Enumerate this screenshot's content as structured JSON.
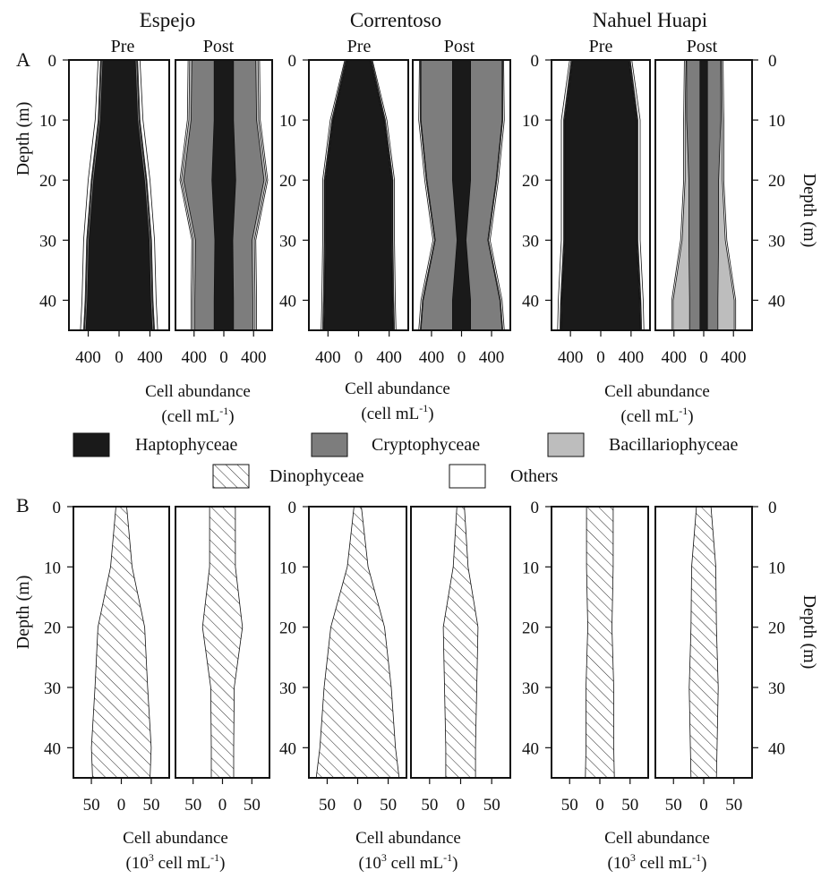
{
  "figure": {
    "lake_titles": [
      "Espejo",
      "Correntoso",
      "Nahuel Huapi"
    ],
    "period_labels": [
      "Pre",
      "Post"
    ],
    "depth_label": "Depth (m)",
    "depth_ticks": [
      "0",
      "10",
      "20",
      "30",
      "40"
    ],
    "panel_a_label": "A",
    "panel_b_label": "B",
    "axis_a_line1": "Cell abundance",
    "axis_a_line2_main": "(cell mL",
    "axis_a_line2_sup": "-1",
    "axis_a_line2_end": ")",
    "axis_b_line1": "Cell abundance",
    "axis_b_line2_pre": "(10",
    "axis_b_line2_sup1": "3",
    "axis_b_line2_main": " cell mL",
    "axis_b_line2_sup2": "-1",
    "axis_b_line2_end": ")",
    "x_ticks_a": [
      "400",
      "0",
      "400"
    ],
    "x_ticks_b": [
      "50",
      "0",
      "50"
    ]
  },
  "legend": {
    "items": [
      {
        "label": "Haptophyceae",
        "color": "#1a1a1a",
        "pattern": "solid"
      },
      {
        "label": "Cryptophyceae",
        "color": "#7d7d7d",
        "pattern": "solid"
      },
      {
        "label": "Bacillariophyceae",
        "color": "#bdbdbd",
        "pattern": "solid"
      },
      {
        "label": "Dinophyceae",
        "color": "#ffffff",
        "pattern": "hatch"
      },
      {
        "label": "Others",
        "color": "#ffffff",
        "pattern": "solid"
      }
    ]
  },
  "chart_data": {
    "type": "area",
    "subtype": "kite-diagram",
    "depths_m": [
      0,
      10,
      20,
      30,
      40,
      45
    ],
    "depth_range": [
      0,
      45
    ],
    "panel_a": {
      "unit": "cell mL-1",
      "x_range": [
        -650,
        650
      ],
      "series_order": [
        "Haptophyceae",
        "Cryptophyceae",
        "Bacillariophyceae",
        "Others"
      ],
      "lakes": [
        {
          "lake": "Espejo",
          "pre": {
            "Haptophyceae": [
              210,
              240,
              330,
              390,
              410,
              430
            ],
            "Cryptophyceae": [
              20,
              20,
              20,
              20,
              20,
              20
            ],
            "Bacillariophyceae": [
              10,
              10,
              10,
              10,
              10,
              10
            ],
            "Others": [
              30,
              40,
              40,
              40,
              40,
              40
            ]
          },
          "post": {
            "Haptophyceae": [
              130,
              130,
              160,
              120,
              130,
              130
            ],
            "Cryptophyceae": [
              300,
              310,
              380,
              260,
              260,
              260
            ],
            "Bacillariophyceae": [
              30,
              30,
              30,
              30,
              30,
              30
            ],
            "Others": [
              20,
              20,
              20,
              20,
              20,
              20
            ]
          }
        },
        {
          "lake": "Correntoso",
          "pre": {
            "Haptophyceae": [
              150,
              330,
              430,
              430,
              440,
              450
            ],
            "Cryptophyceae": [
              10,
              10,
              10,
              10,
              10,
              10
            ],
            "Bacillariophyceae": [
              10,
              10,
              10,
              10,
              10,
              10
            ],
            "Others": [
              10,
              20,
              20,
              20,
              20,
              20
            ]
          },
          "post": {
            "Haptophyceae": [
              120,
              120,
              120,
              60,
              120,
              120
            ],
            "Cryptophyceae": [
              420,
              420,
              340,
              290,
              390,
              420
            ],
            "Bacillariophyceae": [
              10,
              10,
              10,
              10,
              10,
              10
            ],
            "Others": [
              10,
              20,
              20,
              20,
              20,
              20
            ]
          }
        },
        {
          "lake": "Nahuel Huapi",
          "pre": {
            "Haptophyceae": [
              370,
              470,
              470,
              470,
              510,
              520
            ],
            "Cryptophyceae": [
              10,
              10,
              10,
              10,
              10,
              10
            ],
            "Bacillariophyceae": [
              10,
              10,
              10,
              10,
              10,
              10
            ],
            "Others": [
              20,
              30,
              30,
              30,
              30,
              30
            ]
          },
          "post": {
            "Haptophyceae": [
              50,
              50,
              50,
              50,
              50,
              50
            ],
            "Cryptophyceae": [
              180,
              180,
              150,
              150,
              140,
              140
            ],
            "Bacillariophyceae": [
              10,
              20,
              50,
              90,
              220,
              220
            ],
            "Others": [
              20,
              20,
              20,
              20,
              20,
              20
            ]
          }
        }
      ]
    },
    "panel_b": {
      "unit": "10^3 cell mL-1",
      "x_range": [
        -80,
        80
      ],
      "series_order": [
        "Dinophyceae"
      ],
      "lakes": [
        {
          "lake": "Espejo",
          "pre": {
            "Dinophyceae": [
              9,
              18,
              39,
              44,
              50,
              48
            ]
          },
          "post": {
            "Dinophyceae": [
              22,
              22,
              34,
              20,
              19,
              19
            ]
          }
        },
        {
          "lake": "Correntoso",
          "pre": {
            "Dinophyceae": [
              6,
              17,
              44,
              55,
              62,
              68
            ]
          },
          "post": {
            "Dinophyceae": [
              6,
              12,
              28,
              26,
              24,
              24
            ]
          }
        },
        {
          "lake": "Nahuel Huapi",
          "pre": {
            "Dinophyceae": [
              22,
              22,
              20,
              23,
              23,
              24
            ]
          },
          "post": {
            "Dinophyceae": [
              12,
              20,
              21,
              24,
              22,
              21
            ]
          }
        }
      ]
    }
  }
}
